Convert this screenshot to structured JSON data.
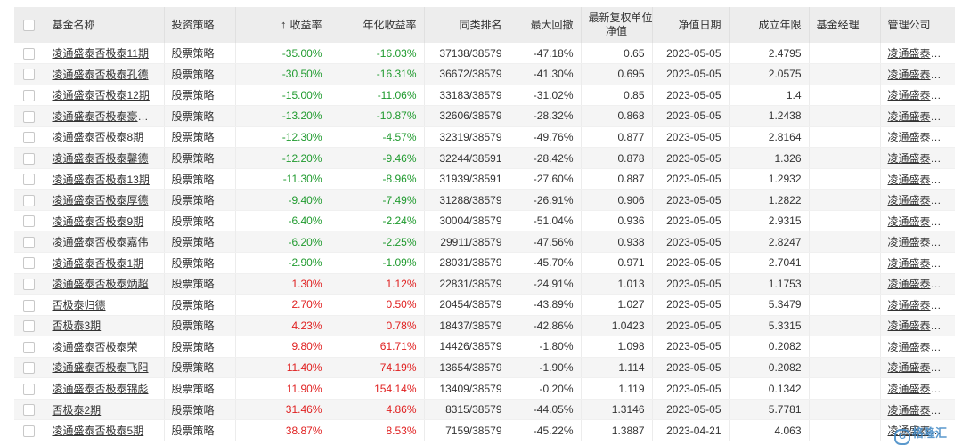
{
  "table": {
    "sort_arrow": "↑",
    "headers": {
      "name": "基金名称",
      "strategy": "投资策略",
      "return": "收益率",
      "annual": "年化收益率",
      "rank": "同类排名",
      "drawdown": "最大回撤",
      "nav_line1": "最新复权单位",
      "nav_line2": "净值",
      "nav_date": "净值日期",
      "years": "成立年限",
      "manager": "基金经理",
      "company": "管理公司"
    },
    "rows": [
      {
        "name": "凌通盛泰否极泰11期",
        "strategy": "股票策略",
        "ret": "-35.00%",
        "annual": "-16.03%",
        "rank": "37138/38579",
        "drawdown": "-47.18%",
        "nav": "0.65",
        "date": "2023-05-05",
        "years": "2.4795",
        "manager": "",
        "company": "凌通盛泰投资"
      },
      {
        "name": "凌通盛泰否极泰孔德",
        "strategy": "股票策略",
        "ret": "-30.50%",
        "annual": "-16.31%",
        "rank": "36672/38579",
        "drawdown": "-41.30%",
        "nav": "0.695",
        "date": "2023-05-05",
        "years": "2.0575",
        "manager": "",
        "company": "凌通盛泰投资"
      },
      {
        "name": "凌通盛泰否极泰12期",
        "strategy": "股票策略",
        "ret": "-15.00%",
        "annual": "-11.06%",
        "rank": "33183/38579",
        "drawdown": "-31.02%",
        "nav": "0.85",
        "date": "2023-05-05",
        "years": "1.4",
        "manager": "",
        "company": "凌通盛泰投资"
      },
      {
        "name": "凌通盛泰否极泰豪杰...",
        "strategy": "股票策略",
        "ret": "-13.20%",
        "annual": "-10.87%",
        "rank": "32606/38579",
        "drawdown": "-28.32%",
        "nav": "0.868",
        "date": "2023-05-05",
        "years": "1.2438",
        "manager": "",
        "company": "凌通盛泰投资"
      },
      {
        "name": "凌通盛泰否极泰8期",
        "strategy": "股票策略",
        "ret": "-12.30%",
        "annual": "-4.57%",
        "rank": "32319/38579",
        "drawdown": "-49.76%",
        "nav": "0.877",
        "date": "2023-05-05",
        "years": "2.8164",
        "manager": "",
        "company": "凌通盛泰投资"
      },
      {
        "name": "凌通盛泰否极泰馨德",
        "strategy": "股票策略",
        "ret": "-12.20%",
        "annual": "-9.46%",
        "rank": "32244/38591",
        "drawdown": "-28.42%",
        "nav": "0.878",
        "date": "2023-05-05",
        "years": "1.326",
        "manager": "",
        "company": "凌通盛泰投资"
      },
      {
        "name": "凌通盛泰否极泰13期",
        "strategy": "股票策略",
        "ret": "-11.30%",
        "annual": "-8.96%",
        "rank": "31939/38591",
        "drawdown": "-27.60%",
        "nav": "0.887",
        "date": "2023-05-05",
        "years": "1.2932",
        "manager": "",
        "company": "凌通盛泰投资"
      },
      {
        "name": "凌通盛泰否极泰厚德",
        "strategy": "股票策略",
        "ret": "-9.40%",
        "annual": "-7.49%",
        "rank": "31288/38579",
        "drawdown": "-26.91%",
        "nav": "0.906",
        "date": "2023-05-05",
        "years": "1.2822",
        "manager": "",
        "company": "凌通盛泰投资"
      },
      {
        "name": "凌通盛泰否极泰9期",
        "strategy": "股票策略",
        "ret": "-6.40%",
        "annual": "-2.24%",
        "rank": "30004/38579",
        "drawdown": "-51.04%",
        "nav": "0.936",
        "date": "2023-05-05",
        "years": "2.9315",
        "manager": "",
        "company": "凌通盛泰投资"
      },
      {
        "name": "凌通盛泰否极泰嘉伟",
        "strategy": "股票策略",
        "ret": "-6.20%",
        "annual": "-2.25%",
        "rank": "29911/38579",
        "drawdown": "-47.56%",
        "nav": "0.938",
        "date": "2023-05-05",
        "years": "2.8247",
        "manager": "",
        "company": "凌通盛泰投资"
      },
      {
        "name": "凌通盛泰否极泰1期",
        "strategy": "股票策略",
        "ret": "-2.90%",
        "annual": "-1.09%",
        "rank": "28031/38579",
        "drawdown": "-45.70%",
        "nav": "0.971",
        "date": "2023-05-05",
        "years": "2.7041",
        "manager": "",
        "company": "凌通盛泰投资"
      },
      {
        "name": "凌通盛泰否极泰炳超",
        "strategy": "股票策略",
        "ret": "1.30%",
        "annual": "1.12%",
        "rank": "22831/38579",
        "drawdown": "-24.91%",
        "nav": "1.013",
        "date": "2023-05-05",
        "years": "1.1753",
        "manager": "",
        "company": "凌通盛泰投资"
      },
      {
        "name": "否极泰归德",
        "strategy": "股票策略",
        "ret": "2.70%",
        "annual": "0.50%",
        "rank": "20454/38579",
        "drawdown": "-43.89%",
        "nav": "1.027",
        "date": "2023-05-05",
        "years": "5.3479",
        "manager": "",
        "company": "凌通盛泰投资"
      },
      {
        "name": "否极泰3期",
        "strategy": "股票策略",
        "ret": "4.23%",
        "annual": "0.78%",
        "rank": "18437/38579",
        "drawdown": "-42.86%",
        "nav": "1.0423",
        "date": "2023-05-05",
        "years": "5.3315",
        "manager": "",
        "company": "凌通盛泰投资"
      },
      {
        "name": "凌通盛泰否极泰荣",
        "strategy": "股票策略",
        "ret": "9.80%",
        "annual": "61.71%",
        "rank": "14426/38579",
        "drawdown": "-1.80%",
        "nav": "1.098",
        "date": "2023-05-05",
        "years": "0.2082",
        "manager": "",
        "company": "凌通盛泰投资"
      },
      {
        "name": "凌通盛泰否极泰飞阳",
        "strategy": "股票策略",
        "ret": "11.40%",
        "annual": "74.19%",
        "rank": "13654/38579",
        "drawdown": "-1.90%",
        "nav": "1.114",
        "date": "2023-05-05",
        "years": "0.2082",
        "manager": "",
        "company": "凌通盛泰投资"
      },
      {
        "name": "凌通盛泰否极泰锦彪",
        "strategy": "股票策略",
        "ret": "11.90%",
        "annual": "154.14%",
        "rank": "13409/38579",
        "drawdown": "-0.20%",
        "nav": "1.119",
        "date": "2023-05-05",
        "years": "0.1342",
        "manager": "",
        "company": "凌通盛泰投资"
      },
      {
        "name": "否极泰2期",
        "strategy": "股票策略",
        "ret": "31.46%",
        "annual": "4.86%",
        "rank": "8315/38579",
        "drawdown": "-44.05%",
        "nav": "1.3146",
        "date": "2023-05-05",
        "years": "5.7781",
        "manager": "",
        "company": "凌通盛泰投资"
      },
      {
        "name": "凌通盛泰否极泰5期",
        "strategy": "股票策略",
        "ret": "38.87%",
        "annual": "8.53%",
        "rank": "7159/38579",
        "drawdown": "-45.22%",
        "nav": "1.3887",
        "date": "2023-04-21",
        "years": "4.063",
        "manager": "",
        "company": "凌通盛泰投资"
      }
    ]
  },
  "watermark": {
    "text": "格隆汇",
    "icon": "gelonghui-logo-icon"
  },
  "colors": {
    "up": "#e02020",
    "down": "#1f9a2e",
    "header_bg": "#ededed",
    "stripe_bg": "#f5f5f5"
  }
}
